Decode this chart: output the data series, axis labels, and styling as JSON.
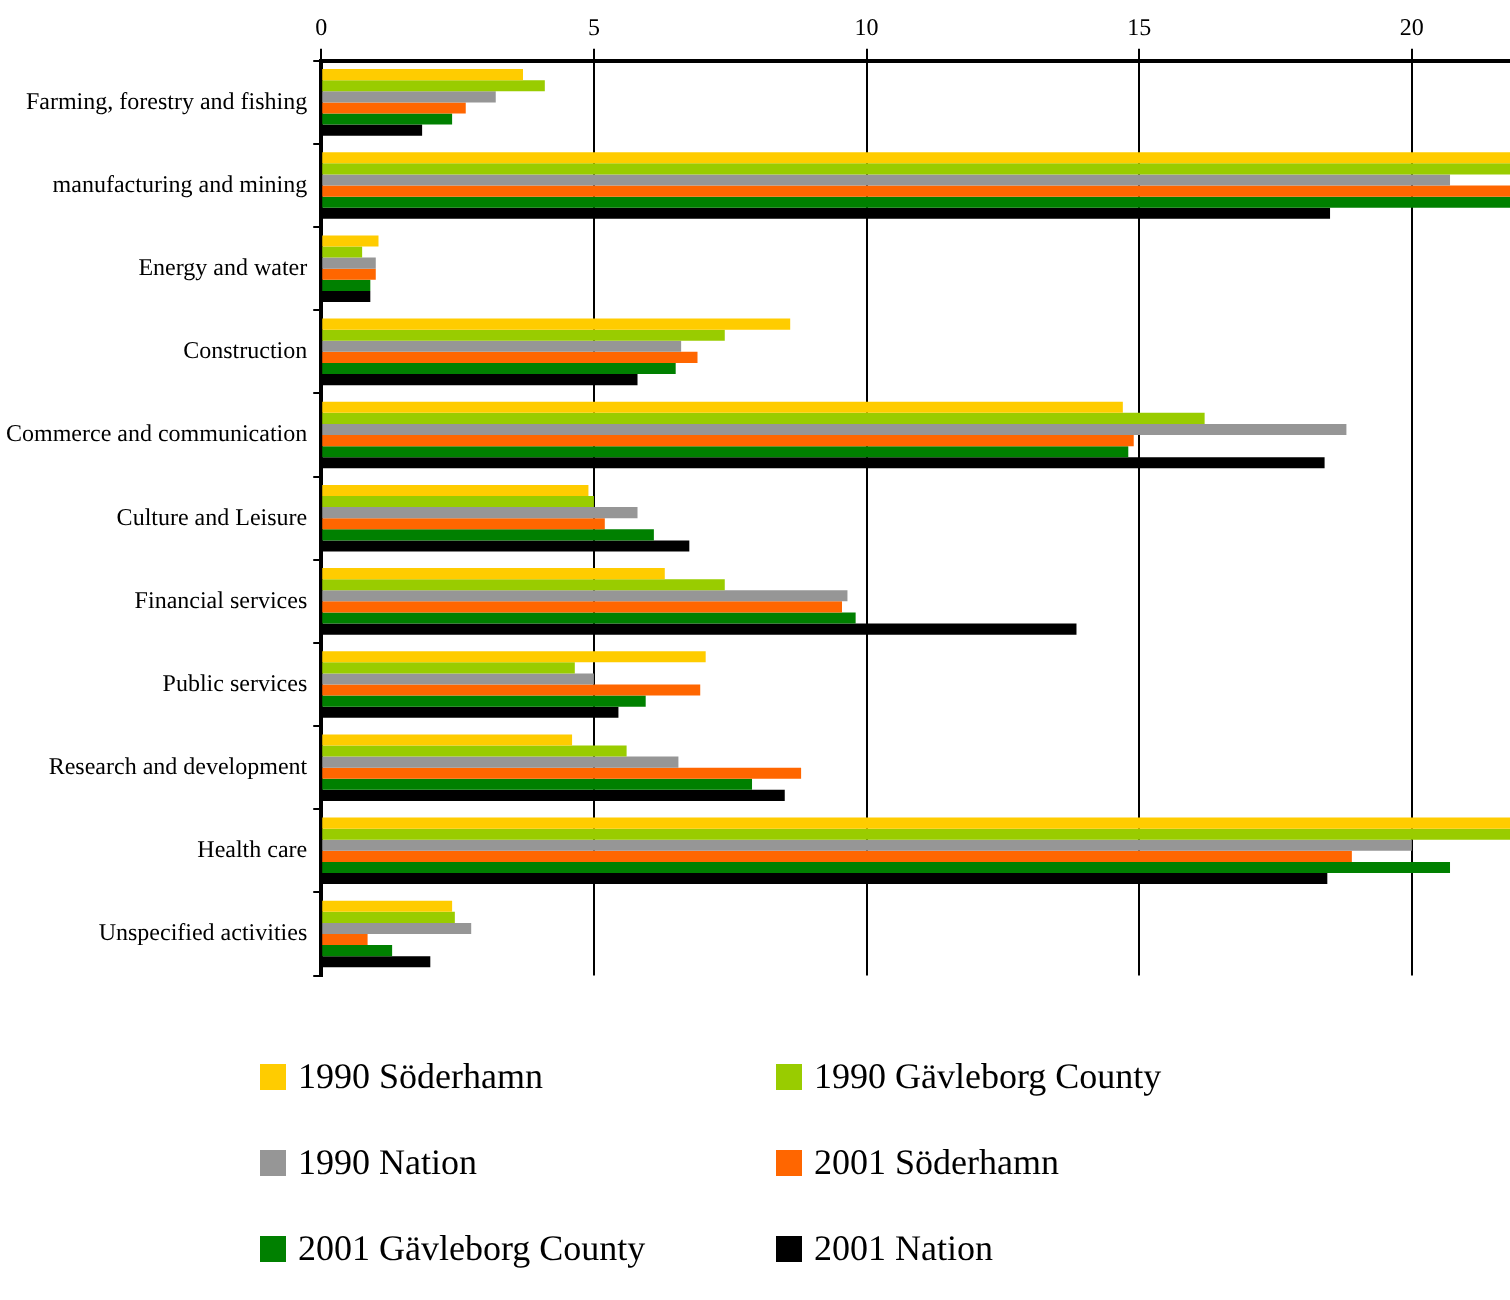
{
  "chart_data": {
    "type": "bar",
    "orientation": "horizontal",
    "categories": [
      "Farming, forestry and fishing",
      "manufacturing and mining",
      "Energy and water",
      "Construction",
      "Commerce and communication",
      "Culture and Leisure",
      "Financial services",
      "Public services",
      "Research and development",
      "Health care",
      "Unspecified activities"
    ],
    "series": [
      {
        "name": "1990 Söderhamn",
        "color": "#ffcc00",
        "values": [
          3.7,
          21.8,
          1.05,
          8.6,
          14.7,
          4.9,
          6.3,
          7.05,
          4.6,
          21.8,
          2.4
        ]
      },
      {
        "name": "1990 Gävleborg County",
        "color": "#99cc00",
        "values": [
          4.1,
          21.8,
          0.75,
          7.4,
          16.2,
          5.0,
          7.4,
          4.65,
          5.6,
          21.8,
          2.45
        ]
      },
      {
        "name": "1990 Nation",
        "color": "#969696",
        "values": [
          3.2,
          20.7,
          1.0,
          6.6,
          18.8,
          5.8,
          9.65,
          5.0,
          6.55,
          20.0,
          2.75
        ]
      },
      {
        "name": "2001 Söderhamn",
        "color": "#ff6600",
        "values": [
          2.65,
          21.8,
          1.0,
          6.9,
          14.9,
          5.2,
          9.55,
          6.95,
          8.8,
          18.9,
          0.85
        ]
      },
      {
        "name": "2001 Gävleborg County",
        "color": "#008000",
        "values": [
          2.4,
          21.8,
          0.9,
          6.5,
          14.8,
          6.1,
          9.8,
          5.95,
          7.9,
          20.7,
          1.3
        ]
      },
      {
        "name": "2001 Nation",
        "color": "#000000",
        "values": [
          1.85,
          18.5,
          0.9,
          5.8,
          18.4,
          6.75,
          13.85,
          5.45,
          8.5,
          18.45,
          2.0
        ]
      }
    ],
    "xlim": [
      0,
      21.8
    ],
    "xticks": [
      0,
      5,
      10,
      15,
      20
    ],
    "grid": "x",
    "legend": "bottom"
  }
}
